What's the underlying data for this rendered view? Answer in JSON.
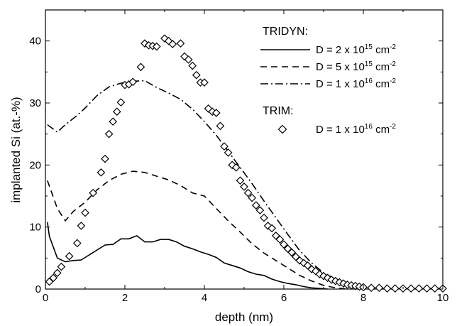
{
  "chart_data": {
    "type": "line",
    "xlabel": "depth (nm)",
    "ylabel": "implanted Si (at.-%)",
    "xlim": [
      0,
      10
    ],
    "ylim": [
      0,
      45
    ],
    "xticks": [
      0,
      2,
      4,
      6,
      8,
      10
    ],
    "yticks": [
      0,
      10,
      20,
      30,
      40
    ],
    "grid": false,
    "legend_placement": "top-right",
    "legend_groups": [
      {
        "heading": "TRIDYN:",
        "entries": [
          {
            "label_pre": "D = 2 x 10",
            "label_sup": "15",
            "label_post": " cm",
            "label_sup2": "-2"
          },
          {
            "label_pre": "D = 5 x 10",
            "label_sup": "15",
            "label_post": " cm",
            "label_sup2": "-2"
          },
          {
            "label_pre": "D = 1 x 10",
            "label_sup": "16",
            "label_post": " cm",
            "label_sup2": "-2"
          }
        ]
      },
      {
        "heading": "TRIM:",
        "entries": [
          {
            "label_pre": "D = 1 x 10",
            "label_sup": "16",
            "label_post": " cm",
            "label_sup2": "-2"
          }
        ]
      }
    ],
    "series": [
      {
        "name": "TRIDYN: D = 2 x 10^15 cm^-2",
        "style": "solid",
        "x": [
          0.05,
          0.1,
          0.3,
          0.5,
          0.7,
          0.9,
          1.1,
          1.3,
          1.5,
          1.7,
          1.9,
          2.1,
          2.3,
          2.5,
          2.7,
          2.9,
          3.1,
          3.3,
          3.5,
          3.7,
          3.9,
          4.1,
          4.3,
          4.5,
          4.7,
          4.9,
          5.1,
          5.3,
          5.5,
          5.7,
          5.9,
          6.1,
          6.3,
          6.5,
          6.7,
          6.9,
          7.1
        ],
        "y": [
          10.8,
          8.5,
          5.0,
          4.4,
          4.6,
          4.7,
          5.5,
          6.3,
          7.1,
          7.2,
          8.1,
          8.1,
          8.6,
          7.6,
          7.6,
          8.0,
          8.0,
          7.6,
          6.9,
          6.5,
          6.0,
          5.6,
          5.1,
          4.2,
          3.8,
          3.4,
          2.8,
          2.4,
          2.2,
          1.6,
          1.2,
          0.9,
          0.7,
          0.4,
          0.2,
          0.1,
          0.0
        ]
      },
      {
        "name": "TRIDYN: D = 5 x 10^15 cm^-2",
        "style": "dashed",
        "x": [
          0.05,
          0.3,
          0.5,
          0.7,
          1.0,
          1.3,
          1.6,
          1.9,
          2.2,
          2.5,
          2.8,
          3.1,
          3.4,
          3.7,
          4.0,
          4.3,
          4.6,
          4.9,
          5.2,
          5.5,
          5.8,
          6.1,
          6.4,
          6.7,
          7.0,
          7.3,
          7.6
        ],
        "y": [
          17.5,
          13.0,
          11.0,
          12.5,
          14.0,
          16.0,
          17.5,
          18.5,
          19.0,
          18.8,
          18.2,
          17.6,
          16.7,
          15.5,
          15.0,
          13.0,
          11.0,
          9.2,
          7.3,
          5.8,
          4.6,
          3.4,
          2.2,
          1.3,
          0.6,
          0.2,
          0.0
        ]
      },
      {
        "name": "TRIDYN: D = 1 x 10^16 cm^-2",
        "style": "dashdot",
        "x": [
          0.05,
          0.3,
          0.5,
          0.8,
          1.0,
          1.3,
          1.6,
          1.9,
          2.2,
          2.5,
          2.8,
          3.1,
          3.4,
          3.7,
          4.0,
          4.3,
          4.6,
          4.9,
          5.2,
          5.5,
          5.8,
          6.1,
          6.4,
          6.7,
          7.0,
          7.3,
          7.6,
          7.9,
          8.0
        ],
        "y": [
          26.5,
          25.3,
          26.5,
          28.0,
          29.2,
          31.2,
          32.6,
          33.2,
          33.5,
          33.6,
          32.5,
          31.6,
          30.6,
          29.0,
          27.0,
          24.8,
          22.2,
          19.6,
          17.0,
          14.2,
          11.5,
          8.8,
          6.2,
          4.2,
          2.6,
          1.6,
          0.9,
          0.3,
          0.1
        ]
      },
      {
        "name": "TRIM: D = 1 x 10^16 cm^-2",
        "style": "markers-diamond",
        "x": [
          0.1,
          0.2,
          0.3,
          0.4,
          0.6,
          0.8,
          0.9,
          1.0,
          1.2,
          1.4,
          1.5,
          1.6,
          1.7,
          1.8,
          1.9,
          2.0,
          2.1,
          2.2,
          2.4,
          2.5,
          2.6,
          2.7,
          2.8,
          3.0,
          3.1,
          3.2,
          3.4,
          3.5,
          3.6,
          3.7,
          3.8,
          3.9,
          4.0,
          4.1,
          4.2,
          4.3,
          4.4,
          4.5,
          4.6,
          4.7,
          4.8,
          4.9,
          5.0,
          5.1,
          5.2,
          5.3,
          5.4,
          5.5,
          5.6,
          5.7,
          5.8,
          5.9,
          6.0,
          6.1,
          6.2,
          6.3,
          6.4,
          6.5,
          6.6,
          6.7,
          6.8,
          6.9,
          7.0,
          7.1,
          7.2,
          7.3,
          7.4,
          7.5,
          7.6,
          7.7,
          7.8,
          7.9,
          8.0,
          8.2,
          8.4,
          8.6,
          8.8,
          9.0,
          9.2,
          9.4,
          9.6,
          9.8,
          10.0
        ],
        "y": [
          1.2,
          1.8,
          2.6,
          3.6,
          5.3,
          7.4,
          10.2,
          12.3,
          15.5,
          18.8,
          21.0,
          25.0,
          27.0,
          28.6,
          30.1,
          32.9,
          33.0,
          33.4,
          35.8,
          39.6,
          39.3,
          39.2,
          39.1,
          40.4,
          40.0,
          39.5,
          39.6,
          37.5,
          37.0,
          36.0,
          34.5,
          33.3,
          33.3,
          29.1,
          28.6,
          28.4,
          26.3,
          23.0,
          22.0,
          20.0,
          19.6,
          17.5,
          16.5,
          15.5,
          14.7,
          13.5,
          12.7,
          11.5,
          10.2,
          9.8,
          8.6,
          8.0,
          7.2,
          6.5,
          5.9,
          5.2,
          4.6,
          4.2,
          3.8,
          3.2,
          2.9,
          2.4,
          2.1,
          1.8,
          1.5,
          1.3,
          1.1,
          0.9,
          0.7,
          0.6,
          0.5,
          0.4,
          0.3,
          0.2,
          0.2,
          0.1,
          0.1,
          0.1,
          0.1,
          0.1,
          0.1,
          0.1,
          0.1
        ]
      }
    ]
  }
}
